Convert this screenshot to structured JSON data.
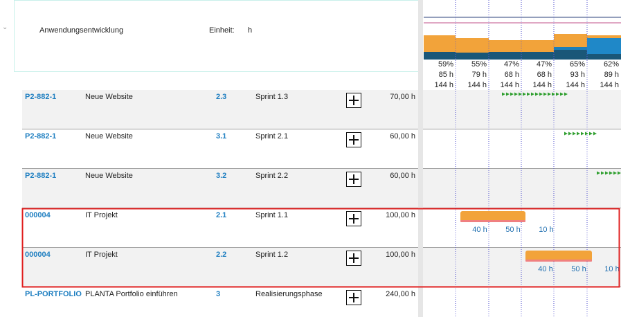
{
  "header": {
    "project": "Anwendungsentwicklung",
    "unit_label": "Einheit:",
    "unit": "h"
  },
  "summary": {
    "columns": [
      {
        "percent": "59%",
        "hours": "85 h",
        "capacity": "144 h"
      },
      {
        "percent": "55%",
        "hours": "79 h",
        "capacity": "144 h"
      },
      {
        "percent": "47%",
        "hours": "68 h",
        "capacity": "144 h"
      },
      {
        "percent": "47%",
        "hours": "68 h",
        "capacity": "144 h"
      },
      {
        "percent": "65%",
        "hours": "93 h",
        "capacity": "144 h"
      },
      {
        "percent": "62%",
        "hours": "89 h",
        "capacity": "144 h"
      }
    ]
  },
  "rows": [
    {
      "id": "P2-882-1",
      "name": "Neue Website",
      "number": "2.3",
      "sprint": "Sprint 1.3",
      "hours": "70,00 h"
    },
    {
      "id": "P2-882-1",
      "name": "Neue Website",
      "number": "3.1",
      "sprint": "Sprint 2.1",
      "hours": "60,00 h"
    },
    {
      "id": "P2-882-1",
      "name": "Neue Website",
      "number": "3.2",
      "sprint": "Sprint 2.2",
      "hours": "60,00 h"
    },
    {
      "id": "000004",
      "name": "IT Projekt",
      "number": "2.1",
      "sprint": "Sprint 1.1",
      "hours": "100,00 h",
      "bar_labels": [
        "40 h",
        "50 h",
        "10 h"
      ]
    },
    {
      "id": "000004",
      "name": "IT Projekt",
      "number": "2.2",
      "sprint": "Sprint 1.2",
      "hours": "100,00 h",
      "bar_labels": [
        "40 h",
        "50 h",
        "10 h"
      ]
    },
    {
      "id": "PL-PORTFOLIO",
      "name": "PLANTA Portfolio einführen",
      "number": "3",
      "sprint": "Realisierungsphase",
      "hours": "240,00 h"
    }
  ]
}
